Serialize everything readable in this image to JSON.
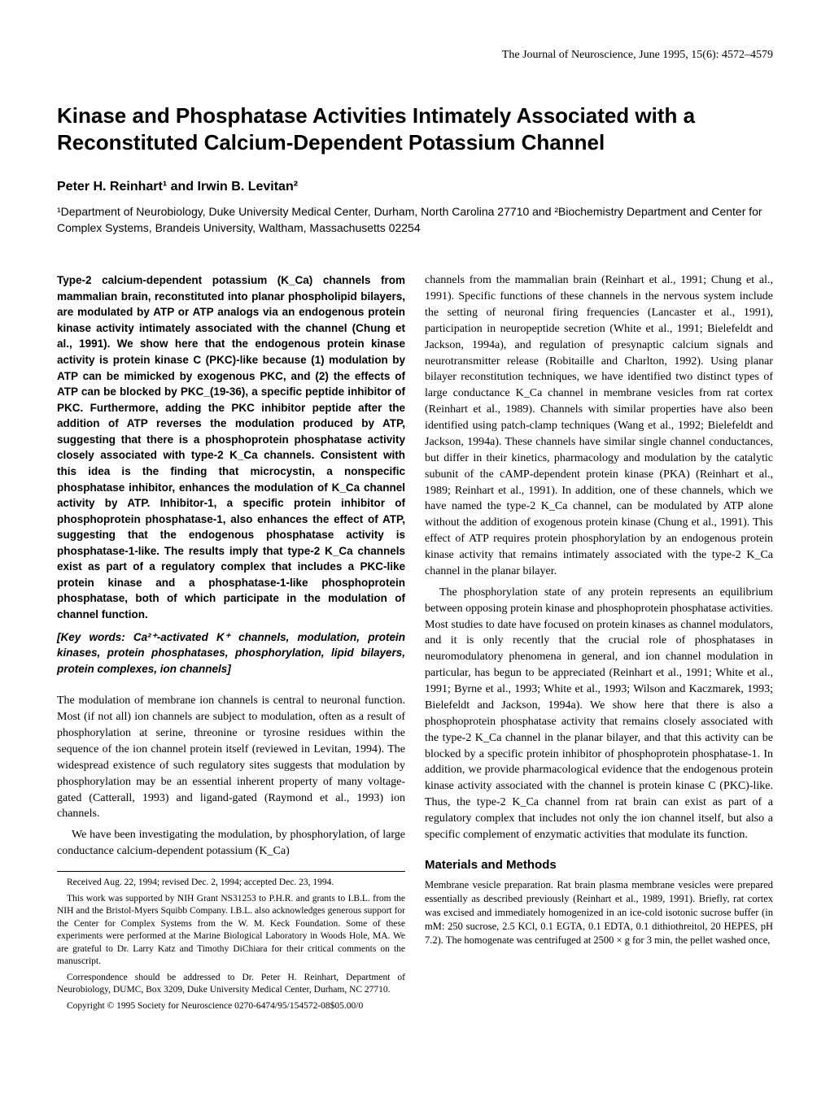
{
  "header": "The Journal of Neuroscience, June 1995, 15(6): 4572–4579",
  "title": "Kinase and Phosphatase Activities Intimately Associated with a Reconstituted Calcium-Dependent Potassium Channel",
  "authors": "Peter H. Reinhart¹ and Irwin B. Levitan²",
  "affiliation": "¹Department of Neurobiology, Duke University Medical Center, Durham, North Carolina 27710 and ²Biochemistry Department and Center for Complex Systems, Brandeis University, Waltham, Massachusetts 02254",
  "abstract": "Type-2 calcium-dependent potassium (K_Ca) channels from mammalian brain, reconstituted into planar phospholipid bilayers, are modulated by ATP or ATP analogs via an endogenous protein kinase activity intimately associated with the channel (Chung et al., 1991). We show here that the endogenous protein kinase activity is protein kinase C (PKC)-like because (1) modulation by ATP can be mimicked by exogenous PKC, and (2) the effects of ATP can be blocked by PKC_(19-36), a specific peptide inhibitor of PKC. Furthermore, adding the PKC inhibitor peptide after the addition of ATP reverses the modulation produced by ATP, suggesting that there is a phosphoprotein phosphatase activity closely associated with type-2 K_Ca channels. Consistent with this idea is the finding that microcystin, a nonspecific phosphatase inhibitor, enhances the modulation of K_Ca channel activity by ATP. Inhibitor-1, a specific protein inhibitor of phosphoprotein phosphatase-1, also enhances the effect of ATP, suggesting that the endogenous phosphatase activity is phosphatase-1-like. The results imply that type-2 K_Ca channels exist as part of a regulatory complex that includes a PKC-like protein kinase and a phosphatase-1-like phosphoprotein phosphatase, both of which participate in the modulation of channel function.",
  "keywords": "[Key words: Ca²⁺-activated K⁺ channels, modulation, protein kinases, protein phosphatases, phosphorylation, lipid bilayers, protein complexes, ion channels]",
  "intro_p1": "The modulation of membrane ion channels is central to neuronal function. Most (if not all) ion channels are subject to modulation, often as a result of phosphorylation at serine, threonine or tyrosine residues within the sequence of the ion channel protein itself (reviewed in Levitan, 1994). The widespread existence of such regulatory sites suggests that modulation by phosphorylation may be an essential inherent property of many voltage-gated (Catterall, 1993) and ligand-gated (Raymond et al., 1993) ion channels.",
  "intro_p2": "We have been investigating the modulation, by phosphorylation, of large conductance calcium-dependent potassium (K_Ca)",
  "received": "Received Aug. 22, 1994; revised Dec. 2, 1994; accepted Dec. 23, 1994.",
  "acknowledgment": "This work was supported by NIH Grant NS31253 to P.H.R. and grants to I.B.L. from the NIH and the Bristol-Myers Squibb Company. I.B.L. also acknowledges generous support for the Center for Complex Systems from the W. M. Keck Foundation. Some of these experiments were performed at the Marine Biological Laboratory in Woods Hole, MA. We are grateful to Dr. Larry Katz and Timothy DiChiara for their critical comments on the manuscript.",
  "correspondence": "Correspondence should be addressed to Dr. Peter H. Reinhart, Department of Neurobiology, DUMC, Box 3209, Duke University Medical Center, Durham, NC 27710.",
  "copyright": "Copyright © 1995 Society for Neuroscience   0270-6474/95/154572-08$05.00/0",
  "col2_p1": "channels from the mammalian brain (Reinhart et al., 1991; Chung et al., 1991). Specific functions of these channels in the nervous system include the setting of neuronal firing frequencies (Lancaster et al., 1991), participation in neuropeptide secretion (White et al., 1991; Bielefeldt and Jackson, 1994a), and regulation of presynaptic calcium signals and neurotransmitter release (Robitaille and Charlton, 1992). Using planar bilayer reconstitution techniques, we have identified two distinct types of large conductance K_Ca channel in membrane vesicles from rat cortex (Reinhart et al., 1989). Channels with similar properties have also been identified using patch-clamp techniques (Wang et al., 1992; Bielefeldt and Jackson, 1994a). These channels have similar single channel conductances, but differ in their kinetics, pharmacology and modulation by the catalytic subunit of the cAMP-dependent protein kinase (PKA) (Reinhart et al., 1989; Reinhart et al., 1991). In addition, one of these channels, which we have named the type-2 K_Ca channel, can be modulated by ATP alone without the addition of exogenous protein kinase (Chung et al., 1991). This effect of ATP requires protein phosphorylation by an endogenous protein kinase activity that remains intimately associated with the type-2 K_Ca channel in the planar bilayer.",
  "col2_p2": "The phosphorylation state of any protein represents an equilibrium between opposing protein kinase and phosphoprotein phosphatase activities. Most studies to date have focused on protein kinases as channel modulators, and it is only recently that the crucial role of phosphatases in neuromodulatory phenomena in general, and ion channel modulation in particular, has begun to be appreciated (Reinhart et al., 1991; White et al., 1991; Byrne et al., 1993; White et al., 1993; Wilson and Kaczmarek, 1993; Bielefeldt and Jackson, 1994a). We show here that there is also a phosphoprotein phosphatase activity that remains closely associated with the type-2 K_Ca channel in the planar bilayer, and that this activity can be blocked by a specific protein inhibitor of phosphoprotein phosphatase-1. In addition, we provide pharmacological evidence that the endogenous protein kinase activity associated with the channel is protein kinase C (PKC)-like. Thus, the type-2 K_Ca channel from rat brain can exist as part of a regulatory complex that includes not only the ion channel itself, but also a specific complement of enzymatic activities that modulate its function.",
  "methods_heading": "Materials and Methods",
  "methods_p1": "Membrane vesicle preparation. Rat brain plasma membrane vesicles were prepared essentially as described previously (Reinhart et al., 1989, 1991). Briefly, rat cortex was excised and immediately homogenized in an ice-cold isotonic sucrose buffer (in mM: 250 sucrose, 2.5 KCl, 0.1 EGTA, 0.1 EDTA, 0.1 dithiothreitol, 20 HEPES, pH 7.2). The homogenate was centrifuged at 2500 × g for 3 min, the pellet washed once,"
}
